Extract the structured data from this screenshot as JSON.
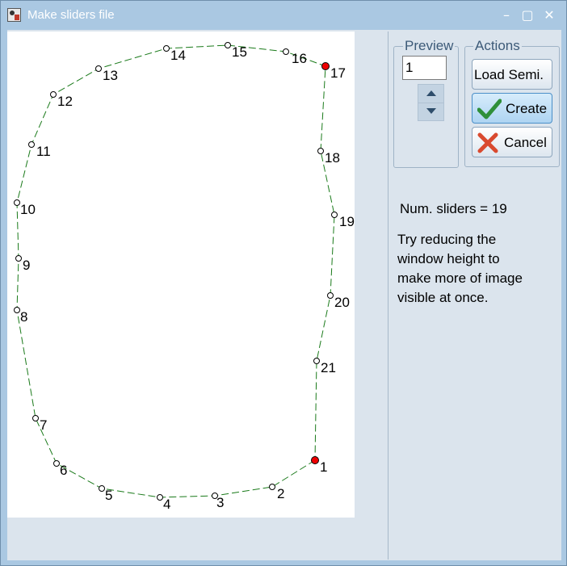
{
  "window": {
    "title": "Make sliders file"
  },
  "title_buttons": {
    "minimize": "–",
    "maximize": "▢",
    "close": "✕"
  },
  "groups": {
    "preview": "Preview",
    "actions": "Actions"
  },
  "preview": {
    "value": "1"
  },
  "actions": {
    "load_semi": "Load Semi.",
    "create": "Create",
    "cancel": "Cancel"
  },
  "status": {
    "num_sliders": "Num. sliders = 19"
  },
  "hint": "Try reducing the\nwindow height to\nmake more of image\nvisible at once.",
  "colors": {
    "outline_stroke": "#1a7a1a",
    "landmark_fill": "#ee0000",
    "create_check": "#2f8f3a",
    "cancel_cross": "#d94a2f"
  },
  "landmarks": [
    {
      "label": "1",
      "fixed": true
    },
    {
      "label": "2",
      "fixed": false
    },
    {
      "label": "3",
      "fixed": false
    },
    {
      "label": "4",
      "fixed": false
    },
    {
      "label": "5",
      "fixed": false
    },
    {
      "label": "6",
      "fixed": false
    },
    {
      "label": "7",
      "fixed": false
    },
    {
      "label": "8",
      "fixed": false
    },
    {
      "label": "9",
      "fixed": false
    },
    {
      "label": "10",
      "fixed": false
    },
    {
      "label": "11",
      "fixed": false
    },
    {
      "label": "12",
      "fixed": false
    },
    {
      "label": "13",
      "fixed": false
    },
    {
      "label": "14",
      "fixed": false
    },
    {
      "label": "15",
      "fixed": false
    },
    {
      "label": "16",
      "fixed": false
    },
    {
      "label": "17",
      "fixed": true
    },
    {
      "label": "18",
      "fixed": false
    },
    {
      "label": "19",
      "fixed": false
    },
    {
      "label": "20",
      "fixed": false
    },
    {
      "label": "21",
      "fixed": false
    }
  ]
}
